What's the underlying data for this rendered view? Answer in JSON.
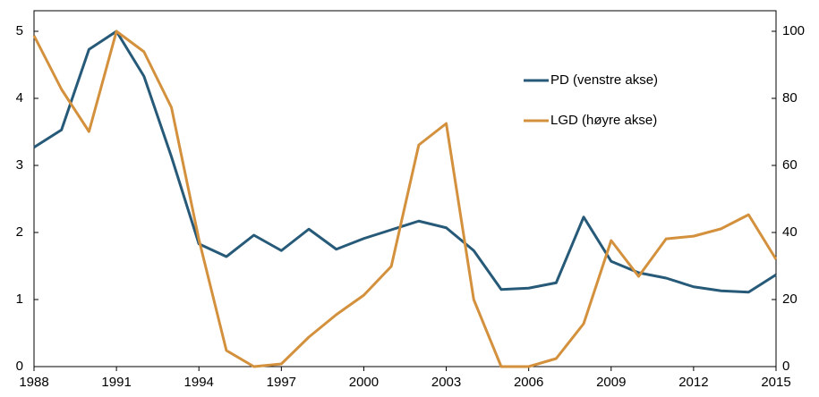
{
  "chart_data": {
    "type": "line",
    "x": [
      1988,
      1989,
      1990,
      1991,
      1992,
      1993,
      1994,
      1995,
      1996,
      1997,
      1998,
      1999,
      2000,
      2001,
      2002,
      2003,
      2004,
      2005,
      2006,
      2007,
      2008,
      2009,
      2010,
      2011,
      2012,
      2013,
      2014,
      2015
    ],
    "series": [
      {
        "name": "PD (venstre akse)",
        "color": "#265a78",
        "axis": "y",
        "values": [
          3.27,
          3.53,
          4.73,
          5.0,
          4.33,
          3.13,
          1.83,
          1.64,
          1.96,
          1.73,
          2.05,
          1.75,
          1.91,
          2.04,
          2.17,
          2.07,
          1.73,
          1.15,
          1.17,
          1.25,
          2.23,
          1.57,
          1.4,
          1.32,
          1.19,
          1.13,
          1.11,
          1.37
        ]
      },
      {
        "name": "LGD (høyre akse)",
        "color": "#d4913d",
        "axis": "y2",
        "values": [
          98.7,
          82.7,
          70.1,
          100,
          93.9,
          77.3,
          37.9,
          4.8,
          0,
          0.8,
          8.8,
          15.5,
          21.3,
          29.9,
          66.1,
          72.5,
          20,
          0,
          0,
          2.4,
          12.8,
          37.6,
          26.9,
          38.1,
          38.9,
          41.1,
          45.3,
          32
        ]
      }
    ],
    "xlim": [
      1988,
      2015
    ],
    "xticks": [
      1988,
      1991,
      1994,
      1997,
      2000,
      2003,
      2006,
      2009,
      2012,
      2015
    ],
    "ylim": [
      0,
      5
    ],
    "yticks": [
      0,
      1,
      2,
      3,
      4,
      5
    ],
    "y2lim": [
      0,
      100
    ],
    "y2ticks": [
      0,
      20,
      40,
      60,
      80,
      100
    ]
  }
}
